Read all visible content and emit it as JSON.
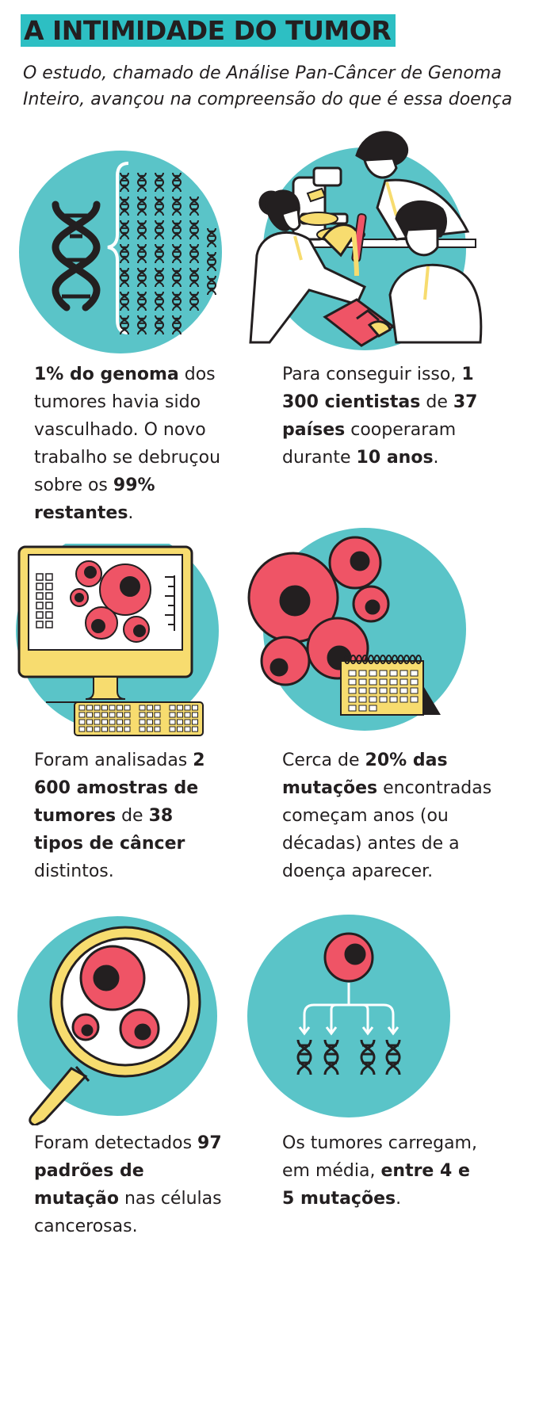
{
  "header": {
    "title": "A INTIMIDADE DO TUMOR",
    "subtitle": "O estudo, chamado de Análise Pan-Câncer de Genoma Inteiro, avançou na compreensão do que é essa doença"
  },
  "colors": {
    "teal": "#5ac4c8",
    "title_bg": "#2dbfc3",
    "cell_red": "#ef5466",
    "yellow": "#f7dc6f",
    "ink": "#231f20"
  },
  "panels": [
    {
      "icon": "dna-genome-icon",
      "caption": [
        {
          "text": "1% do genoma",
          "bold": true
        },
        {
          "text": " dos tumores havia sido vasculhado. O novo trabalho se debruçou sobre os ",
          "bold": false
        },
        {
          "text": "99% restantes",
          "bold": true
        },
        {
          "text": ".",
          "bold": false
        }
      ]
    },
    {
      "icon": "scientists-microscope-icon",
      "caption": [
        {
          "text": "Para conseguir isso, ",
          "bold": false
        },
        {
          "text": "1 300 cientistas",
          "bold": true
        },
        {
          "text": " de ",
          "bold": false
        },
        {
          "text": "37 países",
          "bold": true
        },
        {
          "text": " cooperaram durante ",
          "bold": false
        },
        {
          "text": "10 anos",
          "bold": true
        },
        {
          "text": ".",
          "bold": false
        }
      ]
    },
    {
      "icon": "computer-samples-icon",
      "caption": [
        {
          "text": "Foram analisadas ",
          "bold": false
        },
        {
          "text": "2 600 amostras de tumores",
          "bold": true
        },
        {
          "text": " de ",
          "bold": false
        },
        {
          "text": "38 tipos de câncer",
          "bold": true
        },
        {
          "text": " distintos.",
          "bold": false
        }
      ]
    },
    {
      "icon": "cells-calendar-icon",
      "caption": [
        {
          "text": "Cerca de ",
          "bold": false
        },
        {
          "text": "20% das mutações",
          "bold": true
        },
        {
          "text": " encontradas começam anos (ou décadas) antes de a doença aparecer.",
          "bold": false
        }
      ]
    },
    {
      "icon": "magnifier-cells-icon",
      "caption": [
        {
          "text": "Foram detectados ",
          "bold": false
        },
        {
          "text": "97 padrões de mutação",
          "bold": true
        },
        {
          "text": " nas células cancerosas.",
          "bold": false
        }
      ]
    },
    {
      "icon": "cell-mutations-icon",
      "caption": [
        {
          "text": "Os tumores carregam, em média, ",
          "bold": false
        },
        {
          "text": "entre 4 e 5 mutações",
          "bold": true
        },
        {
          "text": ".",
          "bold": false
        }
      ]
    }
  ]
}
